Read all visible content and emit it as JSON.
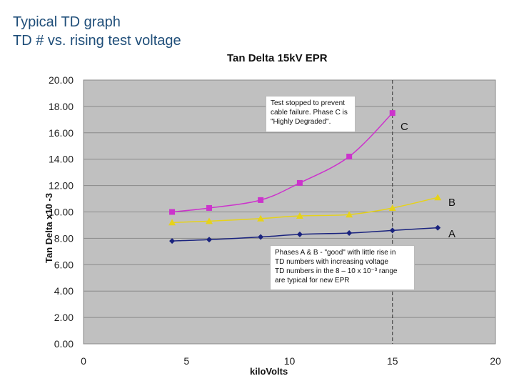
{
  "slide": {
    "title_line1": "Typical TD graph",
    "title_line2": "TD # vs. rising test voltage"
  },
  "chart_data": {
    "type": "line",
    "title": "Tan Delta 15kV EPR",
    "xlabel": "kiloVolts",
    "ylabel": "Tan Delta x10 -3",
    "xlim": [
      0,
      20
    ],
    "ylim": [
      0,
      20
    ],
    "x_ticks": [
      "0",
      "5",
      "10",
      "15",
      "20"
    ],
    "y_ticks": [
      "0.00",
      "2.00",
      "4.00",
      "6.00",
      "8.00",
      "10.00",
      "12.00",
      "14.00",
      "16.00",
      "18.00",
      "20.00"
    ],
    "grid": true,
    "series": [
      {
        "name": "C",
        "color": "#cc33cc",
        "marker": "square",
        "x": [
          4.3,
          6.1,
          8.6,
          10.5,
          12.9,
          15.0
        ],
        "y": [
          10.0,
          10.3,
          10.9,
          12.2,
          14.2,
          17.5
        ]
      },
      {
        "name": "B",
        "color": "#e6d21a",
        "marker": "triangle",
        "x": [
          4.3,
          6.1,
          8.6,
          10.5,
          12.9,
          15.0,
          17.2
        ],
        "y": [
          9.2,
          9.3,
          9.5,
          9.7,
          9.8,
          10.3,
          11.1
        ]
      },
      {
        "name": "A",
        "color": "#1a237e",
        "marker": "diamond",
        "x": [
          4.3,
          6.1,
          8.6,
          10.5,
          12.9,
          15.0,
          17.2
        ],
        "y": [
          7.8,
          7.9,
          8.1,
          8.3,
          8.4,
          8.6,
          8.8
        ]
      }
    ],
    "reference_line": {
      "x": 15.0,
      "style": "dashed"
    },
    "annotations": [
      {
        "id": "stop-note",
        "lines": [
          "Test stopped to prevent",
          "cable failure. Phase C is",
          "\"Highly Degraded\"."
        ]
      },
      {
        "id": "good-note",
        "lines": [
          "Phases A & B - \"good\" with little rise in",
          "TD numbers with increasing voltage",
          "TD numbers in the 8 – 10 x 10⁻³ range",
          "are typical for new EPR"
        ]
      }
    ]
  }
}
